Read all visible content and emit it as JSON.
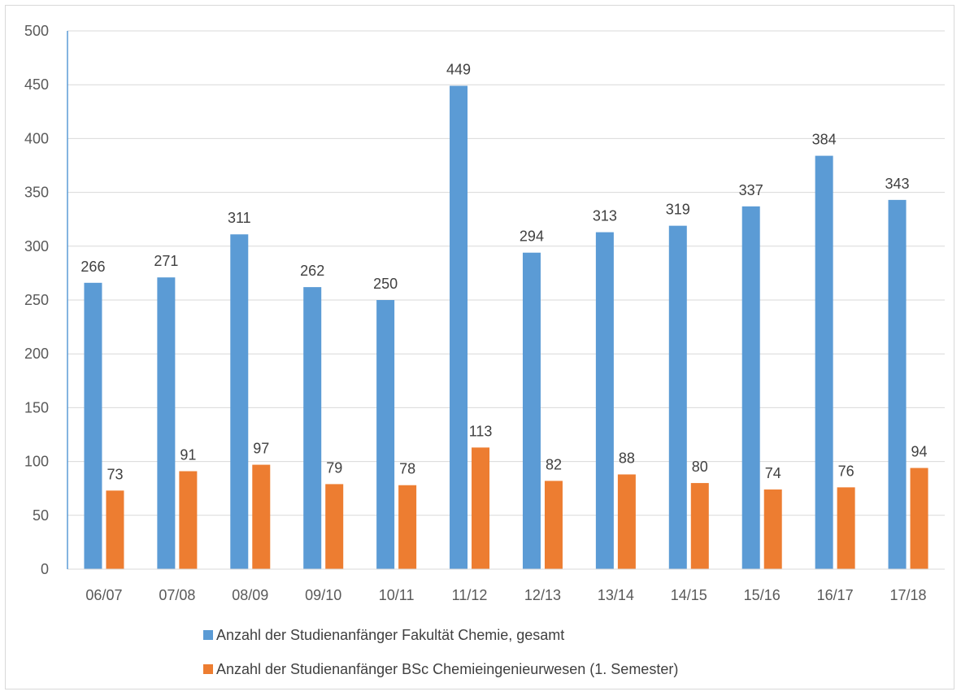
{
  "chart_data": {
    "type": "bar",
    "title": "",
    "xlabel": "",
    "ylabel": "",
    "ylim": [
      0,
      500
    ],
    "yticks": [
      0,
      50,
      100,
      150,
      200,
      250,
      300,
      350,
      400,
      450,
      500
    ],
    "grid": true,
    "legend_position": "bottom",
    "categories": [
      "06/07",
      "07/08",
      "08/09",
      "09/10",
      "10/11",
      "11/12",
      "12/13",
      "13/14",
      "14/15",
      "15/16",
      "16/17",
      "17/18"
    ],
    "series": [
      {
        "name": "Anzahl der Studienanfänger Fakultät Chemie, gesamt",
        "color": "#5b9bd5",
        "values": [
          266,
          271,
          311,
          262,
          250,
          449,
          294,
          313,
          319,
          337,
          384,
          343
        ]
      },
      {
        "name": "Anzahl der Studienanfänger BSc Chemieingenieurwesen (1. Semester)",
        "color": "#ed7d31",
        "values": [
          73,
          91,
          97,
          79,
          78,
          113,
          82,
          88,
          80,
          74,
          76,
          94
        ]
      }
    ]
  }
}
